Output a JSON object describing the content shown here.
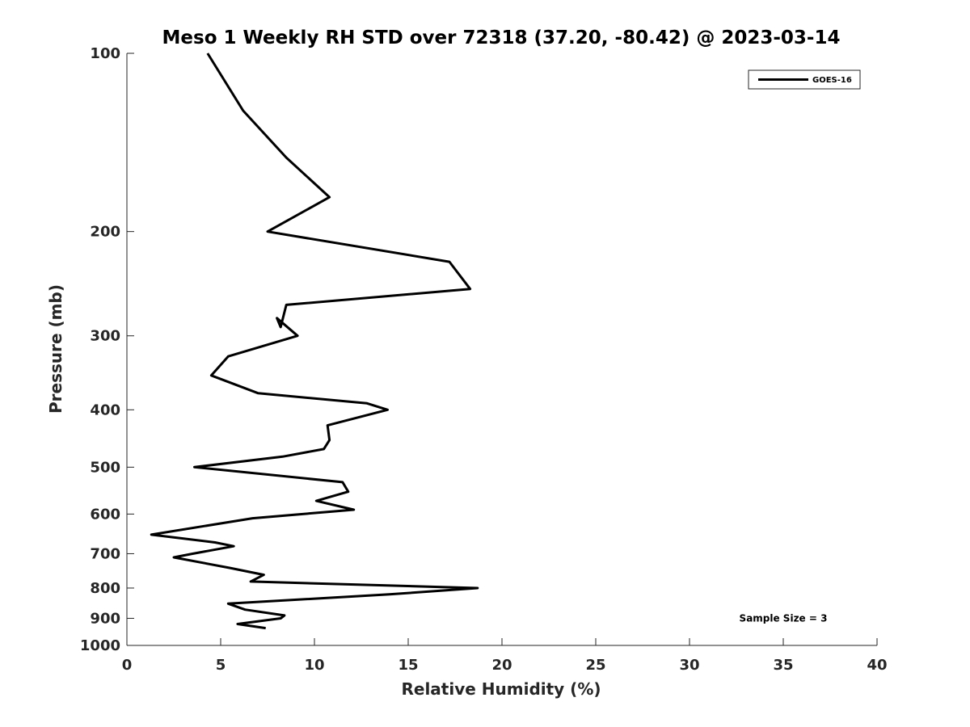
{
  "chart_data": {
    "type": "line",
    "title": "Meso 1 Weekly RH STD over 72318 (37.20, -80.42) @ 2023-03-14",
    "xlabel": "Relative Humidity (%)",
    "ylabel": "Pressure (mb)",
    "xlim": [
      0,
      40
    ],
    "ylim": [
      100,
      1000
    ],
    "yscale": "log",
    "y_reversed": true,
    "grid": false,
    "xticks": [
      0,
      5,
      10,
      15,
      20,
      25,
      30,
      35,
      40
    ],
    "yticks": [
      100,
      200,
      300,
      400,
      500,
      600,
      700,
      800,
      900,
      1000
    ],
    "legend_position": "top-right",
    "series": [
      {
        "name": "GOES-16",
        "color": "#000000",
        "x": [
          4.3,
          6.2,
          8.5,
          10.8,
          7.5,
          17.2,
          18.3,
          8.5,
          8.2,
          8.0,
          9.1,
          5.4,
          4.5,
          7.0,
          12.8,
          13.9,
          10.7,
          10.8,
          10.5,
          8.3,
          3.6,
          11.5,
          11.8,
          10.1,
          12.1,
          6.7,
          1.3,
          4.7,
          5.7,
          3.5,
          2.5,
          5.5,
          7.3,
          6.6,
          18.7,
          14.0,
          5.4,
          6.3,
          8.4,
          8.2,
          5.9,
          7.4
        ],
        "y": [
          100,
          125,
          150,
          175,
          200,
          225,
          250,
          266,
          290,
          280,
          300,
          325,
          350,
          375,
          390,
          400,
          425,
          450,
          466,
          480,
          500,
          530,
          550,
          570,
          590,
          610,
          650,
          670,
          680,
          700,
          710,
          740,
          760,
          780,
          800,
          820,
          850,
          870,
          890,
          900,
          920,
          935
        ]
      }
    ],
    "annotations": [
      {
        "text": "Sample Size = 3",
        "x": 35,
        "y": 900
      }
    ]
  }
}
